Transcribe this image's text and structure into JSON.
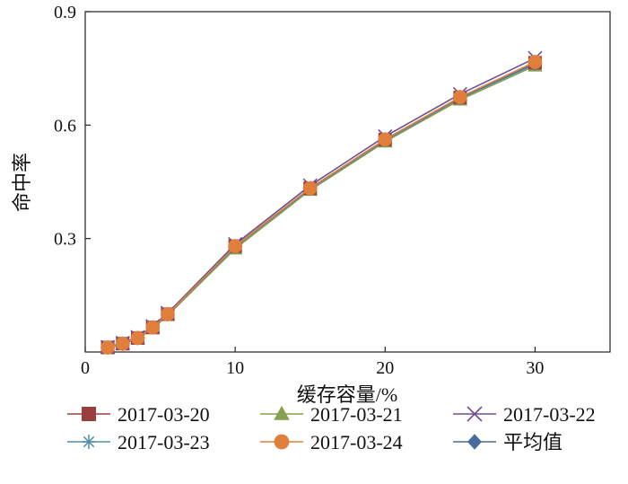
{
  "chart_data": {
    "type": "line",
    "xlabel": "缓存容量/%",
    "ylabel": "命中率",
    "xlim": [
      0,
      35
    ],
    "ylim": [
      0,
      0.9
    ],
    "xticks": [
      0,
      10,
      20,
      30
    ],
    "xtick_labels": [
      "0",
      "10",
      "20",
      "30"
    ],
    "yticks": [
      0.3,
      0.6,
      0.9
    ],
    "ytick_labels": [
      "0.3",
      "0.6",
      "0.9"
    ],
    "grid": false,
    "legend_position": "bottom",
    "x": [
      1.5,
      2.5,
      3.5,
      4.5,
      5.5,
      10,
      15,
      20,
      25,
      30
    ],
    "series": [
      {
        "name": "2017-03-20",
        "color": "#9b3f3d",
        "marker": "square",
        "values": [
          0.012,
          0.022,
          0.037,
          0.065,
          0.1,
          0.28,
          0.433,
          0.562,
          0.673,
          0.765
        ]
      },
      {
        "name": "2017-03-21",
        "color": "#86a050",
        "marker": "triangle",
        "values": [
          0.01,
          0.02,
          0.035,
          0.062,
          0.097,
          0.273,
          0.428,
          0.556,
          0.667,
          0.757
        ]
      },
      {
        "name": "2017-03-22",
        "color": "#6e5090",
        "marker": "x",
        "values": [
          0.013,
          0.024,
          0.039,
          0.068,
          0.103,
          0.285,
          0.44,
          0.57,
          0.682,
          0.777
        ]
      },
      {
        "name": "2017-03-23",
        "color": "#4f8fa6",
        "marker": "asterisk",
        "values": [
          0.011,
          0.021,
          0.036,
          0.064,
          0.099,
          0.278,
          0.431,
          0.559,
          0.671,
          0.761
        ]
      },
      {
        "name": "2017-03-24",
        "color": "#e07f3c",
        "marker": "circle",
        "values": [
          0.012,
          0.022,
          0.037,
          0.065,
          0.1,
          0.28,
          0.433,
          0.562,
          0.674,
          0.767
        ]
      },
      {
        "name": "平均值",
        "color": "#4a6aa0",
        "marker": "diamond",
        "values": [
          0.012,
          0.022,
          0.037,
          0.065,
          0.1,
          0.279,
          0.433,
          0.562,
          0.673,
          0.765
        ]
      }
    ]
  }
}
